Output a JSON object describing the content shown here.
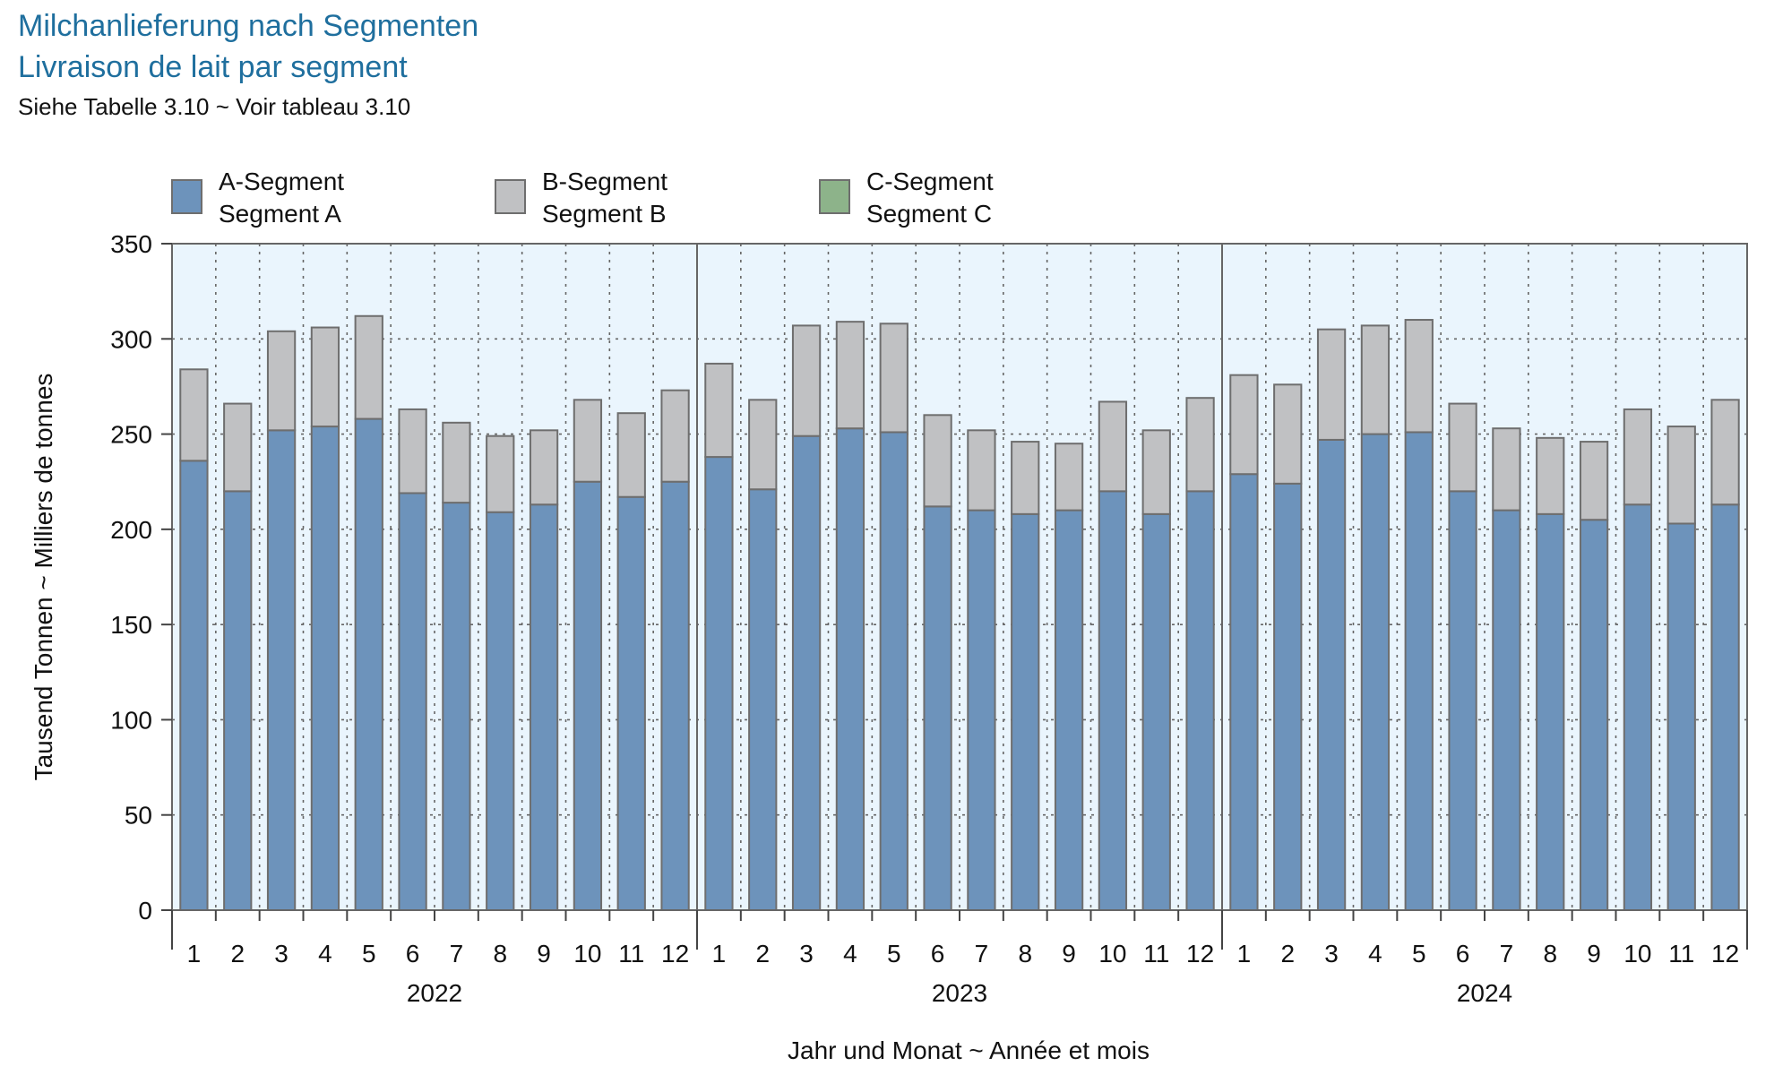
{
  "header": {
    "title_de": "Milchanlieferung nach Segmenten",
    "title_fr": "Livraison de lait par segment",
    "subtitle": "Siehe Tabelle 3.10   ~   Voir tableau 3.10"
  },
  "chart_data": {
    "type": "bar",
    "stacked": true,
    "ylabel": "Tausend Tonnen   ~   Milliers de tonnes",
    "xlabel": "Jahr und Monat   ~   Année et mois",
    "ylim": [
      0,
      350
    ],
    "yticks": [
      0,
      50,
      100,
      150,
      200,
      250,
      300,
      350
    ],
    "grid": true,
    "legend_position": "top",
    "years": [
      "2022",
      "2023",
      "2024"
    ],
    "months": [
      "1",
      "2",
      "3",
      "4",
      "5",
      "6",
      "7",
      "8",
      "9",
      "10",
      "11",
      "12"
    ],
    "series": [
      {
        "name": "A-Segment / Segment A",
        "label_de": "A-Segment",
        "label_fr": "Segment A",
        "color": "#6d93bb",
        "values": [
          236,
          220,
          252,
          254,
          258,
          219,
          214,
          209,
          213,
          225,
          217,
          225,
          238,
          221,
          249,
          253,
          251,
          212,
          210,
          208,
          210,
          220,
          208,
          220,
          229,
          224,
          247,
          250,
          251,
          220,
          210,
          208,
          205,
          213,
          203,
          213
        ]
      },
      {
        "name": "B-Segment / Segment B",
        "label_de": "B-Segment",
        "label_fr": "Segment B",
        "color": "#c0c1c3",
        "values": [
          48,
          46,
          52,
          52,
          54,
          44,
          42,
          40,
          39,
          43,
          44,
          48,
          49,
          47,
          58,
          56,
          57,
          48,
          42,
          38,
          35,
          47,
          44,
          49,
          52,
          52,
          58,
          57,
          59,
          46,
          43,
          40,
          41,
          50,
          51,
          55
        ]
      },
      {
        "name": "C-Segment / Segment C",
        "label_de": "C-Segment",
        "label_fr": "Segment C",
        "color": "#8db38a",
        "values": [
          0,
          0,
          0,
          0,
          0,
          0,
          0,
          0,
          0,
          0,
          0,
          0,
          0,
          0,
          0,
          0,
          0,
          0,
          0,
          0,
          0,
          0,
          0,
          0,
          0,
          0,
          0,
          0,
          0,
          0,
          0,
          0,
          0,
          0,
          0,
          0
        ]
      }
    ],
    "plot_background": "#eaf5fd"
  }
}
